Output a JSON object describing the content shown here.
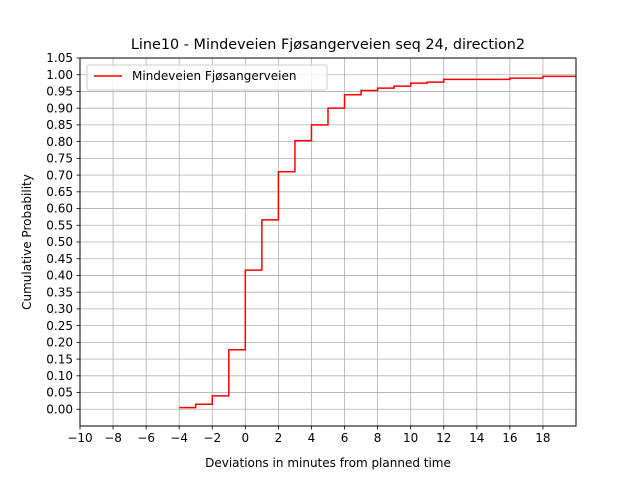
{
  "chart_data": {
    "type": "line",
    "drawstyle": "steps-post",
    "title": "Line10 - Mindeveien Fjøsangerveien seq 24, direction2",
    "xlabel": "Deviations in minutes from planned time",
    "ylabel": "Cumulative Probability",
    "xlim": [
      -10,
      20
    ],
    "ylim": [
      -0.05,
      1.05
    ],
    "xticks": [
      -10,
      -8,
      -6,
      -4,
      -2,
      0,
      2,
      4,
      6,
      8,
      10,
      12,
      14,
      16,
      18
    ],
    "xtick_labels": [
      "−10",
      "−8",
      "−6",
      "−4",
      "−2",
      "0",
      "2",
      "4",
      "6",
      "8",
      "10",
      "12",
      "14",
      "16",
      "18"
    ],
    "yticks": [
      0,
      0.05,
      0.1,
      0.15,
      0.2,
      0.25,
      0.3,
      0.35,
      0.4,
      0.45,
      0.5,
      0.55,
      0.6,
      0.65,
      0.7,
      0.75,
      0.8,
      0.85,
      0.9,
      0.95,
      1.0,
      1.05
    ],
    "ytick_labels": [
      "0.00",
      "0.05",
      "0.10",
      "0.15",
      "0.20",
      "0.25",
      "0.30",
      "0.35",
      "0.40",
      "0.45",
      "0.50",
      "0.55",
      "0.60",
      "0.65",
      "0.70",
      "0.75",
      "0.80",
      "0.85",
      "0.90",
      "0.95",
      "1.00",
      "1.05"
    ],
    "grid": true,
    "legend_position": "top-left",
    "series": [
      {
        "name": "Mindeveien Fjøsangerveien",
        "color": "#ff0000",
        "x": [
          -4,
          -3,
          -2,
          -1,
          0,
          1,
          2,
          3,
          4,
          5,
          6,
          7,
          8,
          9,
          10,
          11,
          12,
          13,
          14,
          15,
          16,
          17,
          18,
          19,
          20
        ],
        "y": [
          0.005,
          0.015,
          0.04,
          0.178,
          0.416,
          0.566,
          0.71,
          0.803,
          0.85,
          0.9,
          0.94,
          0.953,
          0.96,
          0.966,
          0.975,
          0.978,
          0.986,
          0.986,
          0.986,
          0.986,
          0.99,
          0.99,
          0.995,
          0.995,
          0.995
        ]
      }
    ]
  }
}
